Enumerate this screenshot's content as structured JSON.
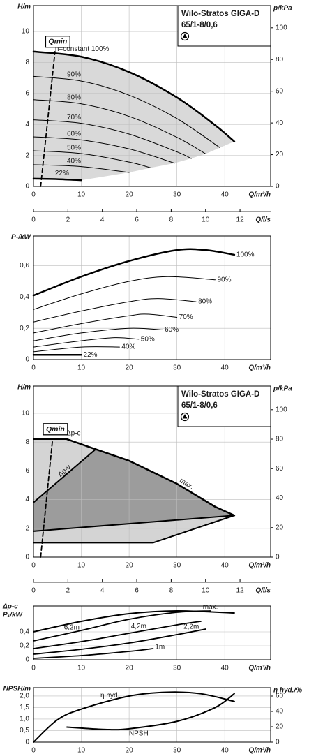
{
  "chart_data": [
    {
      "type": "line",
      "title": "Wilo-Stratos GIGA-D",
      "subtitle": "65/1-8/0,6",
      "ylabel": "H/m",
      "y2label": "p/kPa",
      "xlabel": "Q/m³/h",
      "x2label": "Q/l/s",
      "xlim": [
        0,
        49.6
      ],
      "xticks": [
        0,
        10,
        20,
        30,
        40
      ],
      "x2lim": [
        0,
        13.78
      ],
      "x2ticks": [
        0,
        2,
        4,
        6,
        8,
        10,
        12
      ],
      "ylim": [
        0,
        11.67
      ],
      "yticks": [
        0,
        2,
        4,
        6,
        8,
        10
      ],
      "y2lim": [
        0,
        114
      ],
      "y2ticks": [
        0,
        20,
        40,
        60,
        80,
        100
      ],
      "grid": true,
      "smooth": true,
      "line_color": "#000000",
      "fill": "#d9d9d9",
      "series": [
        {
          "name": "n=constant 100%",
          "line_width": 2.5,
          "x": [
            0,
            10,
            20,
            30,
            38,
            42
          ],
          "values": [
            8.7,
            8.37,
            7.38,
            5.74,
            3.95,
            2.9
          ]
        },
        {
          "name": "90%",
          "line_width": 1,
          "x": [
            0,
            10,
            20,
            30,
            39
          ],
          "values": [
            7.1,
            6.8,
            5.89,
            4.38,
            2.5
          ]
        },
        {
          "name": "80%",
          "line_width": 1,
          "x": [
            0,
            10,
            20,
            30,
            36
          ],
          "values": [
            5.6,
            5.33,
            4.52,
            3.17,
            2.1
          ]
        },
        {
          "name": "70%",
          "line_width": 1,
          "x": [
            0,
            10,
            20,
            30,
            33
          ],
          "values": [
            4.3,
            4.07,
            3.38,
            2.23,
            1.8
          ]
        },
        {
          "name": "60%",
          "line_width": 1,
          "x": [
            0,
            10,
            20,
            29.5
          ],
          "values": [
            3.2,
            3.0,
            2.42,
            1.5
          ]
        },
        {
          "name": "50%",
          "line_width": 1,
          "x": [
            0,
            10,
            20,
            24.5
          ],
          "values": [
            2.3,
            2.12,
            1.57,
            1.2
          ]
        },
        {
          "name": "40%",
          "line_width": 1,
          "x": [
            0,
            10,
            20
          ],
          "values": [
            1.4,
            1.28,
            0.9
          ]
        },
        {
          "name": "22%",
          "line_width": 2.5,
          "x": [
            0,
            5,
            10
          ],
          "values": [
            0.5,
            0.47,
            0.4
          ]
        },
        {
          "name": "Qmin",
          "style": "dashed",
          "line_width": 1.8,
          "x": [
            1.5,
            4.5
          ],
          "values": [
            0,
            8.7
          ]
        }
      ]
    },
    {
      "type": "line",
      "ylabel": "P₁/kW",
      "xlabel": "Q/m³/h",
      "xlim": [
        0,
        49.6
      ],
      "xticks": [
        0,
        10,
        20,
        30,
        40
      ],
      "ylim": [
        0,
        0.79
      ],
      "yticks": [
        0,
        {
          "value": 0.2,
          "label": "0,2"
        },
        {
          "value": 0.4,
          "label": "0,4"
        },
        {
          "value": 0.6,
          "label": "0,6"
        }
      ],
      "grid": true,
      "smooth": true,
      "line_color": "#000000",
      "series": [
        {
          "name": "100%",
          "line_width": 2.5,
          "x": [
            0,
            10,
            20,
            30,
            36,
            42
          ],
          "values": [
            0.41,
            0.53,
            0.63,
            0.7,
            0.7,
            0.67
          ]
        },
        {
          "name": "90%",
          "line_width": 1,
          "x": [
            0,
            10,
            20,
            28,
            38
          ],
          "values": [
            0.32,
            0.42,
            0.5,
            0.53,
            0.51
          ]
        },
        {
          "name": "80%",
          "line_width": 1,
          "x": [
            0,
            10,
            20,
            26,
            34
          ],
          "values": [
            0.24,
            0.31,
            0.37,
            0.39,
            0.37
          ]
        },
        {
          "name": "70%",
          "line_width": 1,
          "x": [
            0,
            10,
            20,
            24,
            30
          ],
          "values": [
            0.17,
            0.23,
            0.28,
            0.29,
            0.27
          ]
        },
        {
          "name": "60%",
          "line_width": 1,
          "x": [
            0,
            10,
            20,
            27
          ],
          "values": [
            0.12,
            0.17,
            0.2,
            0.19
          ]
        },
        {
          "name": "50%",
          "line_width": 1,
          "x": [
            0,
            10,
            17,
            22
          ],
          "values": [
            0.08,
            0.12,
            0.14,
            0.13
          ]
        },
        {
          "name": "40%",
          "line_width": 1,
          "x": [
            0,
            10,
            18
          ],
          "values": [
            0.05,
            0.08,
            0.08
          ]
        },
        {
          "name": "22%",
          "line_width": 2.5,
          "x": [
            0,
            10
          ],
          "values": [
            0.03,
            0.03
          ]
        }
      ]
    },
    {
      "type": "line",
      "title": "Wilo-Stratos GIGA-D",
      "subtitle": "65/1-8/0,6",
      "ylabel": "H/m",
      "y2label": "p/kPa",
      "xlabel": "Q/m³/h",
      "x2label": "Q/l/s",
      "xlim": [
        0,
        49.6
      ],
      "xticks": [
        0,
        10,
        20,
        30,
        40
      ],
      "x2lim": [
        0,
        13.78
      ],
      "x2ticks": [
        0,
        2,
        4,
        6,
        8,
        10,
        12
      ],
      "ylim": [
        0,
        11.89
      ],
      "yticks": [
        0,
        2,
        4,
        6,
        8,
        10
      ],
      "y2lim": [
        0,
        116
      ],
      "y2ticks": [
        0,
        20,
        40,
        60,
        80,
        100
      ],
      "grid": true,
      "smooth": false,
      "line_color": "#000000",
      "fill": "#d4d4d4",
      "fill2": "#9c9c9c",
      "series": [
        {
          "name": "Δp-c",
          "line_width": 2,
          "x": [
            0,
            7
          ],
          "values": [
            8.2,
            8.2
          ]
        },
        {
          "name": "Δp-v",
          "line_width": 2,
          "x": [
            0,
            13
          ],
          "values": [
            3.8,
            7.5
          ]
        },
        {
          "name": "max.",
          "line_width": 2.5,
          "x": [
            7,
            13,
            20,
            30,
            38,
            42
          ],
          "values": [
            8.2,
            7.5,
            6.7,
            5.1,
            3.5,
            2.9
          ]
        },
        {
          "line_width": 2,
          "x": [
            0,
            42
          ],
          "values": [
            1.8,
            2.9
          ]
        },
        {
          "line_width": 2,
          "x": [
            0,
            25,
            42
          ],
          "values": [
            1.0,
            1.0,
            2.9
          ]
        },
        {
          "name": "Qmin",
          "style": "dashed",
          "line_width": 1.8,
          "x": [
            1.5,
            4
          ],
          "values": [
            0,
            8.2
          ]
        }
      ]
    },
    {
      "type": "line",
      "ylabel_top": "Δp-c",
      "ylabel": "P₁/kW",
      "xlabel": "Q/m³/h",
      "xlim": [
        0,
        49.6
      ],
      "xticks": [
        0,
        10,
        20,
        30,
        40
      ],
      "ylim": [
        0,
        0.77
      ],
      "yticks": [
        0,
        {
          "value": 0.2,
          "label": "0,2"
        },
        {
          "value": 0.4,
          "label": "0,4"
        }
      ],
      "grid": true,
      "smooth": true,
      "line_color": "#000000",
      "series": [
        {
          "name": "max.",
          "line_width": 2,
          "x": [
            0,
            10,
            20,
            30,
            42
          ],
          "values": [
            0.4,
            0.55,
            0.66,
            0.7,
            0.67
          ]
        },
        {
          "name": "6,2m",
          "line_width": 1.8,
          "x": [
            0,
            10,
            20,
            30,
            37
          ],
          "values": [
            0.27,
            0.42,
            0.58,
            0.68,
            0.7
          ]
        },
        {
          "name": "4,2m",
          "line_width": 1.8,
          "x": [
            0,
            10,
            20,
            30,
            35
          ],
          "values": [
            0.16,
            0.26,
            0.38,
            0.5,
            0.55
          ]
        },
        {
          "name": "2,2m",
          "line_width": 1.8,
          "x": [
            0,
            10,
            20,
            30,
            36
          ],
          "values": [
            0.08,
            0.15,
            0.24,
            0.36,
            0.44
          ]
        },
        {
          "name": "1m",
          "line_width": 1.8,
          "x": [
            0,
            10,
            20,
            25
          ],
          "values": [
            0.02,
            0.06,
            0.12,
            0.16
          ]
        }
      ]
    },
    {
      "type": "line",
      "ylabel": "NPSH/m",
      "y2label": "η hyd./%",
      "xlabel": "Q/m³/h",
      "xlim": [
        0,
        49.6
      ],
      "xticks": [
        0,
        10,
        20,
        30,
        40
      ],
      "ylim": [
        0,
        2.36
      ],
      "yticks": [
        0,
        {
          "value": 0.5,
          "label": "0,5"
        },
        {
          "value": 1,
          "label": "1,0"
        },
        {
          "value": 1.5,
          "label": "1,5"
        },
        {
          "value": 2,
          "label": "2,0"
        }
      ],
      "y2lim": [
        0,
        70.9
      ],
      "y2ticks": [
        0,
        20,
        40,
        60
      ],
      "grid": true,
      "smooth": true,
      "line_color": "#000000",
      "series": [
        {
          "name": "η hyd.",
          "axis": "y2",
          "line_width": 2,
          "x": [
            0,
            5,
            10,
            20,
            28,
            35,
            42
          ],
          "values": [
            0,
            29,
            43,
            60,
            65,
            63,
            53
          ]
        },
        {
          "name": "NPSH",
          "line_width": 2,
          "x": [
            7,
            15,
            20,
            30,
            38,
            42
          ],
          "values": [
            0.65,
            0.55,
            0.58,
            0.9,
            1.5,
            2.1
          ]
        }
      ]
    }
  ]
}
